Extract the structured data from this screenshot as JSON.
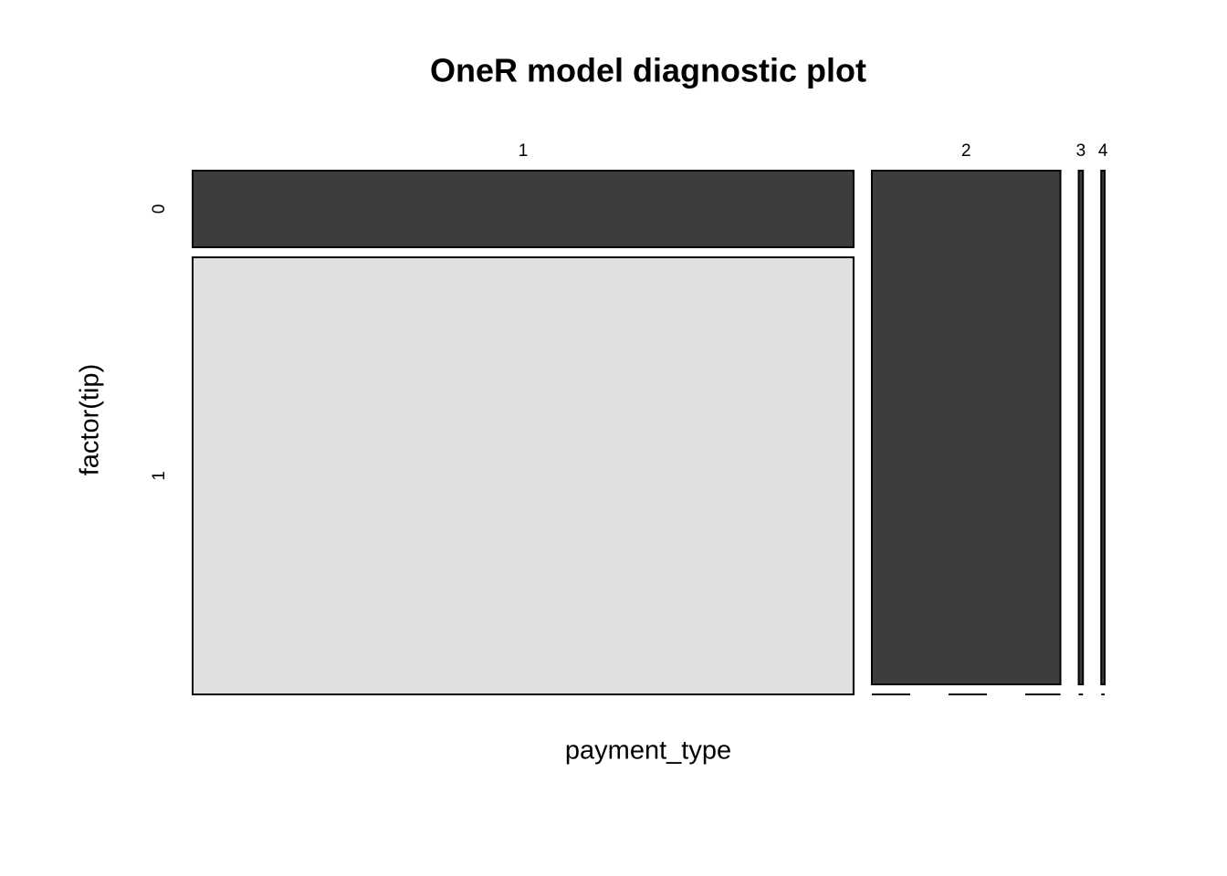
{
  "chart_data": {
    "type": "mosaic",
    "title": "OneR model diagnostic plot",
    "x_label": "payment_type",
    "y_label": "factor(tip)",
    "categories": [
      "1",
      "2",
      "3",
      "4"
    ],
    "series": [
      {
        "name": "0",
        "color": "#3d3d3d",
        "values": [
          11.5,
          22.0,
          0.5,
          0.4
        ]
      },
      {
        "name": "1",
        "color": "#e0e0e0",
        "values": [
          65.6,
          0,
          0,
          0
        ]
      }
    ]
  }
}
